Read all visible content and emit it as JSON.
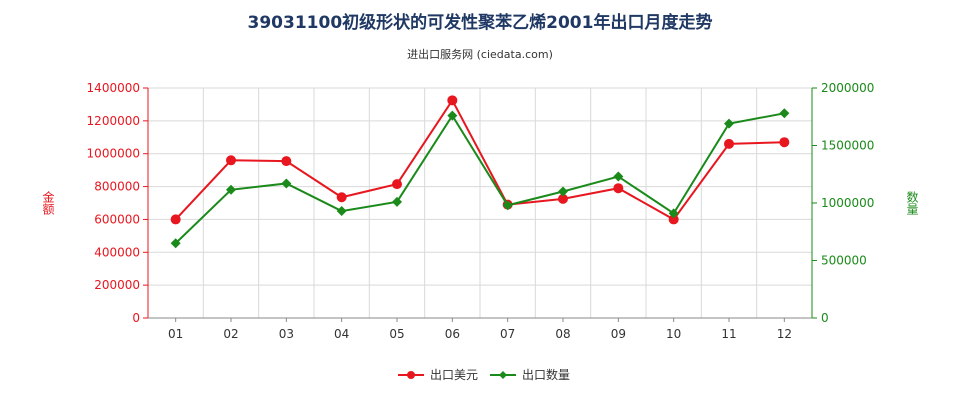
{
  "chart_data": {
    "type": "line",
    "title": "39031100初级形状的可发性聚苯乙烯2001年出口月度走势",
    "subtitle": "进出口服务网 (ciedata.com)",
    "categories": [
      "01",
      "02",
      "03",
      "04",
      "05",
      "06",
      "07",
      "08",
      "09",
      "10",
      "11",
      "12"
    ],
    "y_left": {
      "label": "金额",
      "range": [
        0,
        1400000
      ],
      "ticks": [
        "0",
        "200000",
        "400000",
        "600000",
        "800000",
        "1000000",
        "1200000",
        "1400000"
      ],
      "color": "#e8171f"
    },
    "y_right": {
      "label": "数量",
      "range": [
        0,
        2000000
      ],
      "ticks": [
        "0",
        "500000",
        "1000000",
        "1500000",
        "2000000"
      ],
      "color": "#1a8a1a"
    },
    "grid": true,
    "legend_position": "bottom",
    "series": [
      {
        "name": "出口美元",
        "axis": "left",
        "color": "#e8171f",
        "marker": "circle",
        "values": [
          600000,
          960000,
          955000,
          735000,
          815000,
          1325000,
          690000,
          725000,
          790000,
          600000,
          1060000,
          1070000
        ]
      },
      {
        "name": "出口数量",
        "axis": "right",
        "color": "#1a8a1a",
        "marker": "diamond",
        "values": [
          650000,
          1115000,
          1170000,
          930000,
          1010000,
          1760000,
          980000,
          1100000,
          1230000,
          910000,
          1690000,
          1780000
        ]
      }
    ]
  }
}
